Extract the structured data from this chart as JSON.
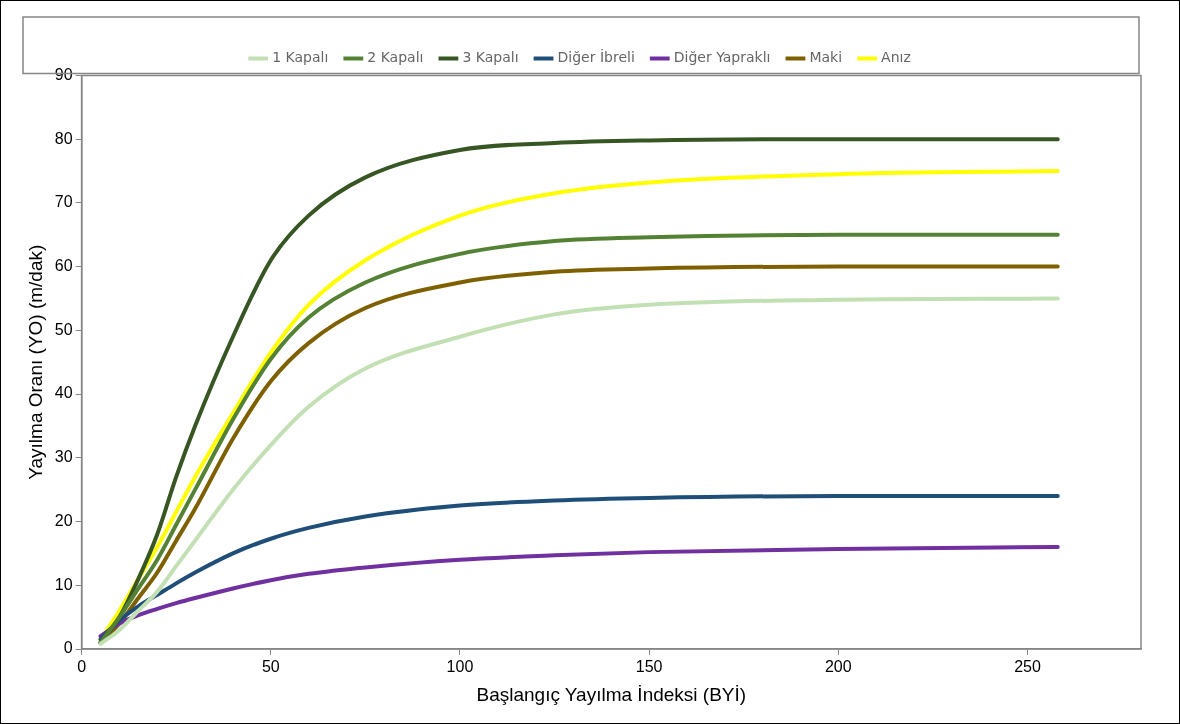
{
  "chart_data": {
    "type": "line",
    "xlabel": "Başlangıç Yayılma İndeksi (BYİ)",
    "ylabel": "Yayılma Oranı (YO) (m/dak)",
    "x": [
      5,
      10,
      15,
      20,
      25,
      30,
      40,
      50,
      60,
      75,
      100,
      125,
      150,
      200,
      258
    ],
    "series": [
      {
        "name": "1 Kapalı",
        "color": "#c3e0b4",
        "values": [
          0.8,
          3,
          6,
          9,
          13,
          17,
          25,
          32,
          38,
          44,
          49,
          52.5,
          54,
          54.8,
          55
        ]
      },
      {
        "name": "2 Kapalı",
        "color": "#548235",
        "values": [
          1,
          5,
          9.5,
          14,
          19.5,
          25,
          36,
          45.5,
          52,
          57.5,
          62,
          64,
          64.6,
          65,
          65
        ]
      },
      {
        "name": "3 Kapalı",
        "color": "#375623",
        "values": [
          1,
          5,
          11,
          18,
          27,
          35,
          49,
          61,
          68,
          74,
          78.3,
          79.4,
          79.8,
          80,
          80
        ]
      },
      {
        "name": "Diğer İbreli",
        "color": "#1f4e79",
        "values": [
          1.5,
          4.5,
          6.7,
          8.5,
          10.3,
          12,
          15,
          17.3,
          19,
          20.8,
          22.5,
          23.3,
          23.7,
          24,
          24
        ]
      },
      {
        "name": "Diğer Yapraklı",
        "color": "#7030a0",
        "values": [
          2,
          4,
          5.3,
          6.3,
          7.2,
          8,
          9.5,
          10.8,
          11.8,
          12.8,
          14,
          14.7,
          15.2,
          15.7,
          16
        ]
      },
      {
        "name": "Maki",
        "color": "#7f6000",
        "values": [
          1,
          4,
          8,
          12,
          17,
          22,
          33,
          42,
          48,
          53.5,
          57.5,
          59.2,
          59.7,
          60,
          60
        ]
      },
      {
        "name": "Anız",
        "color": "#ffff00",
        "values": [
          1.5,
          6,
          11,
          16,
          21.5,
          27,
          37,
          46.5,
          54,
          61,
          68,
          71.5,
          73.2,
          74.5,
          75
        ]
      }
    ],
    "xlim": [
      0,
      280
    ],
    "xticks": [
      0,
      50,
      100,
      150,
      200,
      250
    ],
    "ylim": [
      0,
      90
    ],
    "yticks": [
      0,
      10,
      20,
      30,
      40,
      50,
      60,
      70,
      80,
      90
    ],
    "grid": false,
    "legend": "top",
    "marker": "none",
    "line_style": "solid"
  }
}
